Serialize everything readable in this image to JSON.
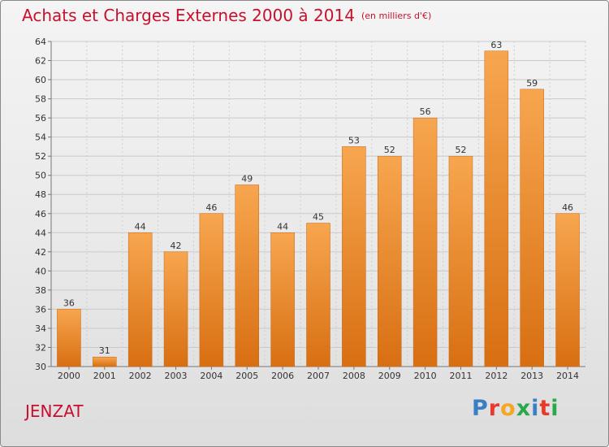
{
  "header": {
    "title": "Achats et Charges Externes 2000 à 2014",
    "subtitle": "(en milliers d'€)"
  },
  "footer": {
    "place": "JENZAT",
    "logo": {
      "letters": [
        "P",
        "r",
        "o",
        "x",
        "i",
        "t",
        "i"
      ],
      "colors": [
        "#3a7fc4",
        "#e8392b",
        "#f5a623",
        "#2aa84a",
        "#3a7fc4",
        "#e8392b",
        "#2aa84a"
      ]
    }
  },
  "colors": {
    "bar_top": "#f7a64f",
    "bar_bottom": "#d86f12",
    "bar_edge": "#c96510",
    "title": "#c8102e"
  },
  "chart_data": {
    "type": "bar",
    "categories": [
      "2000",
      "2001",
      "2002",
      "2003",
      "2004",
      "2005",
      "2006",
      "2007",
      "2008",
      "2009",
      "2010",
      "2011",
      "2012",
      "2013",
      "2014"
    ],
    "values": [
      36,
      31,
      44,
      42,
      46,
      49,
      44,
      45,
      53,
      52,
      56,
      52,
      63,
      59,
      46
    ],
    "title": "Achats et Charges Externes 2000 à 2014",
    "ylim": [
      30,
      64
    ],
    "yticks": [
      30,
      32,
      34,
      36,
      38,
      40,
      42,
      44,
      46,
      48,
      50,
      52,
      54,
      56,
      58,
      60,
      62,
      64
    ],
    "grid": true,
    "data_labels": true
  }
}
